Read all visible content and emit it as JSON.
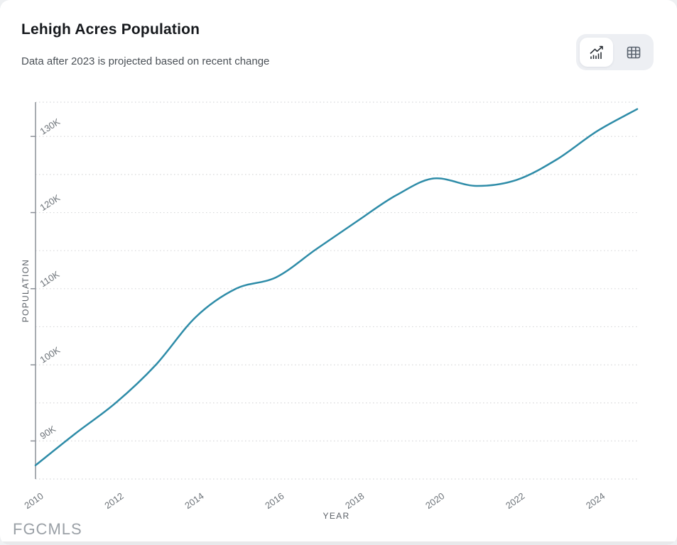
{
  "chart_data": {
    "type": "line",
    "title": "Lehigh Acres Population",
    "subtitle": "Data after 2023 is projected based on recent change",
    "xlabel": "YEAR",
    "ylabel": "POPULATION",
    "x": [
      2010,
      2011,
      2012,
      2013,
      2014,
      2015,
      2016,
      2017,
      2018,
      2019,
      2020,
      2021,
      2022,
      2023,
      2024,
      2025
    ],
    "series": [
      {
        "name": "Population",
        "values": [
          86800,
          91000,
          95000,
          100000,
          106300,
          110000,
          111500,
          115200,
          118800,
          122300,
          124500,
          123500,
          124300,
          127000,
          130700,
          133600
        ]
      }
    ],
    "projected_after": 2023,
    "xlim": [
      2010,
      2025
    ],
    "ylim": [
      85000,
      134500
    ],
    "xticks": [
      {
        "value": 2010,
        "label": "2010"
      },
      {
        "value": 2012,
        "label": "2012"
      },
      {
        "value": 2014,
        "label": "2014"
      },
      {
        "value": 2016,
        "label": "2016"
      },
      {
        "value": 2018,
        "label": "2018"
      },
      {
        "value": 2020,
        "label": "2020"
      },
      {
        "value": 2022,
        "label": "2022"
      },
      {
        "value": 2024,
        "label": "2024"
      }
    ],
    "yticks": [
      {
        "value": 90000,
        "label": "90K"
      },
      {
        "value": 100000,
        "label": "100K"
      },
      {
        "value": 110000,
        "label": "110K"
      },
      {
        "value": 120000,
        "label": "120K"
      },
      {
        "value": 130000,
        "label": "130K"
      }
    ],
    "grid": {
      "horizontal": true,
      "style": "dotted",
      "step": 5000
    },
    "legend": "none"
  },
  "toolbar": {
    "active_view": "chart",
    "views": [
      {
        "id": "chart",
        "icon": "line-chart-icon"
      },
      {
        "id": "table",
        "icon": "table-icon"
      }
    ]
  },
  "watermark": "FGCMLS",
  "colors": {
    "line": "#2e8ca8",
    "grid": "#d7d8da",
    "axis": "#8b9097",
    "tick_text": "#6d7379",
    "axis_title": "#5b6067",
    "title_text": "#16191d",
    "subtitle_text": "#4a5056",
    "seg_bg": "#edeff3",
    "watermark_text": "#9aa0a6"
  }
}
